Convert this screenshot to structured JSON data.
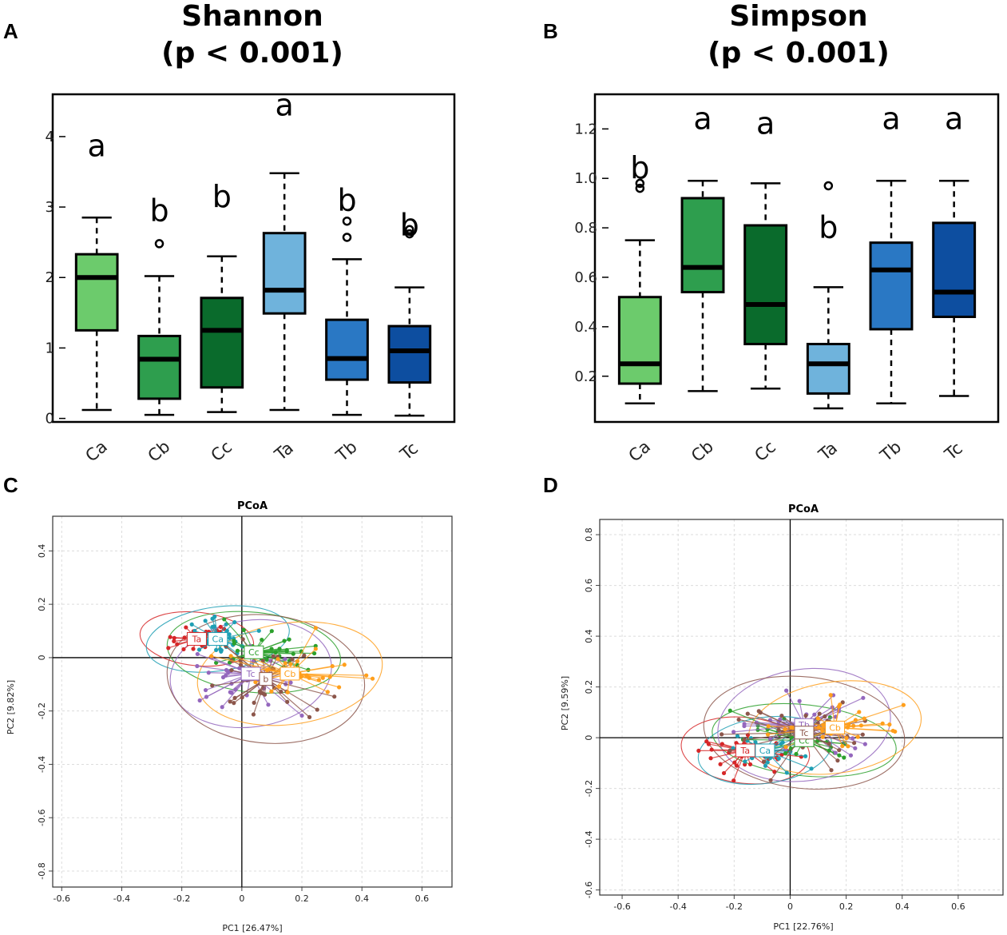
{
  "chart_data": [
    {
      "panel": "A",
      "type": "box",
      "title": "Shannon",
      "subtitle": "(p < 0.001)",
      "categories": [
        "Ca",
        "Cb",
        "Cc",
        "Ta",
        "Tb",
        "Tc"
      ],
      "colors": [
        "#6ccb6c",
        "#2e9e4e",
        "#0a6b2c",
        "#6fb3dc",
        "#2a78c4",
        "#0d4ea0"
      ],
      "ylim": [
        -0.05,
        4.6
      ],
      "yticks": [
        0,
        1,
        2,
        3,
        4
      ],
      "boxes": [
        {
          "min": 0.12,
          "q1": 1.25,
          "median": 2.0,
          "q3": 2.33,
          "max": 2.85,
          "outliers": []
        },
        {
          "min": 0.05,
          "q1": 0.28,
          "median": 0.84,
          "q3": 1.17,
          "max": 2.02,
          "outliers": [
            2.48
          ]
        },
        {
          "min": 0.09,
          "q1": 0.44,
          "median": 1.25,
          "q3": 1.71,
          "max": 2.3,
          "outliers": []
        },
        {
          "min": 0.12,
          "q1": 1.49,
          "median": 1.82,
          "q3": 2.63,
          "max": 3.48,
          "outliers": []
        },
        {
          "min": 0.05,
          "q1": 0.55,
          "median": 0.85,
          "q3": 1.4,
          "max": 2.26,
          "outliers": [
            2.57,
            2.8
          ]
        },
        {
          "min": 0.04,
          "q1": 0.51,
          "median": 0.96,
          "q3": 1.31,
          "max": 1.86,
          "outliers": [
            2.62,
            2.68
          ]
        }
      ],
      "sig_letters": [
        "a",
        "b",
        "b",
        "a",
        "b",
        "b"
      ],
      "sig_y": [
        3.72,
        2.8,
        3.0,
        4.3,
        2.95,
        2.6
      ]
    },
    {
      "panel": "B",
      "type": "box",
      "title": "Simpson",
      "subtitle": "(p < 0.001)",
      "categories": [
        "Ca",
        "Cb",
        "Cc",
        "Ta",
        "Tb",
        "Tc"
      ],
      "colors": [
        "#6ccb6c",
        "#2e9e4e",
        "#0a6b2c",
        "#6fb3dc",
        "#2a78c4",
        "#0d4ea0"
      ],
      "ylim": [
        0.015,
        1.34
      ],
      "yticks": [
        0.2,
        0.4,
        0.6,
        0.8,
        1.0,
        1.2
      ],
      "ytick_labels": [
        "0.2",
        "0.4",
        "0.6",
        "0.8",
        "1.0",
        "1.2"
      ],
      "boxes": [
        {
          "min": 0.09,
          "q1": 0.17,
          "median": 0.25,
          "q3": 0.52,
          "max": 0.75,
          "outliers": [
            0.96,
            0.98
          ]
        },
        {
          "min": 0.14,
          "q1": 0.54,
          "median": 0.64,
          "q3": 0.92,
          "max": 0.99,
          "outliers": []
        },
        {
          "min": 0.15,
          "q1": 0.33,
          "median": 0.49,
          "q3": 0.81,
          "max": 0.98,
          "outliers": []
        },
        {
          "min": 0.07,
          "q1": 0.13,
          "median": 0.25,
          "q3": 0.33,
          "max": 0.56,
          "outliers": [
            0.97
          ]
        },
        {
          "min": 0.09,
          "q1": 0.39,
          "median": 0.63,
          "q3": 0.74,
          "max": 0.99,
          "outliers": []
        },
        {
          "min": 0.12,
          "q1": 0.44,
          "median": 0.54,
          "q3": 0.82,
          "max": 0.99,
          "outliers": []
        }
      ],
      "sig_letters": [
        "b",
        "a",
        "a",
        "b",
        "a",
        "a"
      ],
      "sig_y": [
        1.0,
        1.2,
        1.18,
        0.76,
        1.2,
        1.2
      ]
    },
    {
      "panel": "C",
      "type": "scatter",
      "title": "PCoA",
      "xlabel": "PC1  [26.47%]",
      "ylabel": "PC2  [9.82%]",
      "xlim": [
        -0.63,
        0.7
      ],
      "ylim": [
        -0.86,
        0.53
      ],
      "xticks": [
        -0.6,
        -0.4,
        -0.2,
        0.0,
        0.2,
        0.4,
        0.6
      ],
      "yticks": [
        -0.8,
        -0.6,
        -0.4,
        -0.2,
        0.0,
        0.2,
        0.4
      ],
      "groups": [
        {
          "label": "Ta",
          "color": "#d62728",
          "centroid": [
            -0.15,
            0.07
          ],
          "spread": [
            0.11,
            0.06
          ],
          "ellipse_r": [
            0.19,
            0.1
          ]
        },
        {
          "label": "Ca",
          "color": "#1f9fb4",
          "centroid": [
            -0.08,
            0.07
          ],
          "spread": [
            0.13,
            0.07
          ],
          "ellipse_r": [
            0.24,
            0.12
          ]
        },
        {
          "label": "Cc",
          "color": "#2ca02c",
          "centroid": [
            0.04,
            0.02
          ],
          "spread": [
            0.22,
            0.09
          ],
          "ellipse_r": [
            0.29,
            0.15
          ]
        },
        {
          "label": "Tc",
          "color": "#9467bd",
          "centroid": [
            0.03,
            -0.06
          ],
          "spread": [
            0.18,
            0.12
          ],
          "ellipse_r": [
            0.27,
            0.2
          ]
        },
        {
          "label": "b",
          "color": "#8c564b",
          "centroid": [
            0.08,
            -0.08
          ],
          "spread": [
            0.24,
            0.16
          ],
          "ellipse_r": [
            0.33,
            0.24
          ]
        },
        {
          "label": "Cb",
          "color": "#ff9f1c",
          "centroid": [
            0.16,
            -0.06
          ],
          "spread": [
            0.24,
            0.11
          ],
          "ellipse_r": [
            0.31,
            0.19
          ]
        }
      ]
    },
    {
      "panel": "D",
      "type": "scatter",
      "title": "PCoA",
      "xlabel": "PC1  [22.76%]",
      "ylabel": "PC2  [9.59%]",
      "xlim": [
        -0.68,
        0.76
      ],
      "ylim": [
        -0.62,
        0.86
      ],
      "xticks": [
        -0.6,
        -0.4,
        -0.2,
        0.0,
        0.2,
        0.4,
        0.6
      ],
      "yticks": [
        -0.6,
        -0.4,
        -0.2,
        0.0,
        0.2,
        0.4,
        0.6,
        0.8
      ],
      "groups": [
        {
          "label": "Ta",
          "color": "#d62728",
          "centroid": [
            -0.16,
            -0.05
          ],
          "spread": [
            0.17,
            0.08
          ],
          "ellipse_r": [
            0.23,
            0.13
          ]
        },
        {
          "label": "Ca",
          "color": "#1f9fb4",
          "centroid": [
            -0.09,
            -0.05
          ],
          "spread": [
            0.18,
            0.08
          ],
          "ellipse_r": [
            0.24,
            0.13
          ]
        },
        {
          "label": "Cc",
          "color": "#2ca02c",
          "centroid": [
            0.05,
            -0.01
          ],
          "spread": [
            0.28,
            0.09
          ],
          "ellipse_r": [
            0.33,
            0.14
          ]
        },
        {
          "label": "Tb",
          "color": "#9467bd",
          "centroid": [
            0.05,
            0.05
          ],
          "spread": [
            0.24,
            0.14
          ],
          "ellipse_r": [
            0.31,
            0.22
          ]
        },
        {
          "label": "Tc",
          "color": "#8c564b",
          "centroid": [
            0.05,
            0.02
          ],
          "spread": [
            0.29,
            0.15
          ],
          "ellipse_r": [
            0.36,
            0.22
          ]
        },
        {
          "label": "Cb",
          "color": "#ff9f1c",
          "centroid": [
            0.16,
            0.04
          ],
          "spread": [
            0.25,
            0.11
          ],
          "ellipse_r": [
            0.31,
            0.18
          ]
        }
      ]
    }
  ]
}
